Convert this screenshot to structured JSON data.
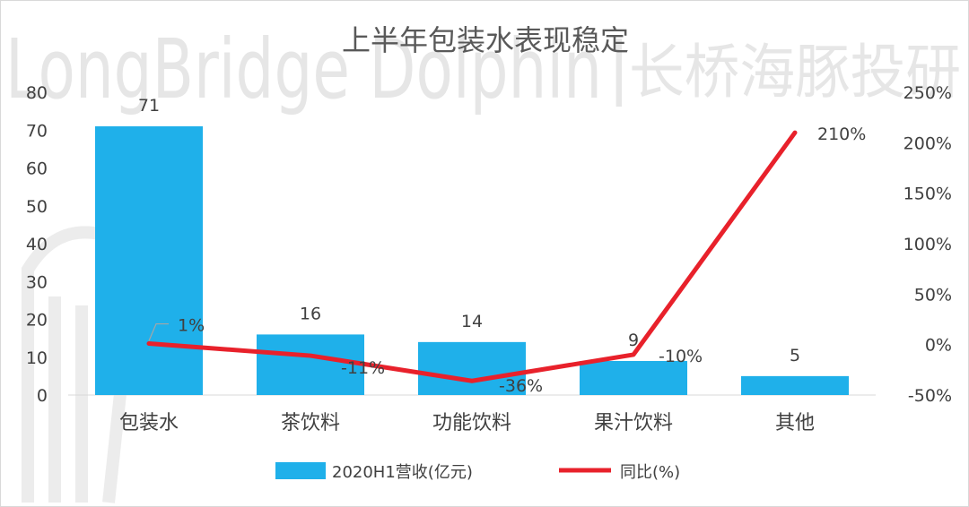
{
  "watermark": {
    "text_en": "LongBridge Dolphin",
    "separator": "|",
    "text_cn": "长桥海豚投研"
  },
  "colors": {
    "bar": "#1FB0EA",
    "line": "#E8212B",
    "text": "#404040",
    "title": "#595959",
    "axis": "#d9d9d9"
  },
  "chart_data": {
    "type": "bar",
    "title": "上半年包装水表现稳定",
    "categories": [
      "包装水",
      "茶饮料",
      "功能饮料",
      "果汁饮料",
      "其他"
    ],
    "series": [
      {
        "name": "2020H1营收(亿元)",
        "type": "bar",
        "axis": "left",
        "values": [
          71,
          16,
          14,
          9,
          5
        ],
        "labels": [
          "71",
          "16",
          "14",
          "9",
          "5"
        ]
      },
      {
        "name": "同比(%)",
        "type": "line",
        "axis": "right",
        "values": [
          1,
          -11,
          -36,
          -10,
          210
        ],
        "labels": [
          "1%",
          "-11%",
          "-36%",
          "-10%",
          "210%"
        ]
      }
    ],
    "y_left": {
      "min": 0,
      "max": 80,
      "step": 10,
      "ticks": [
        "0",
        "10",
        "20",
        "30",
        "40",
        "50",
        "60",
        "70",
        "80"
      ]
    },
    "y_right": {
      "min": -50,
      "max": 250,
      "step": 50,
      "ticks": [
        "-50%",
        "0%",
        "50%",
        "100%",
        "150%",
        "200%",
        "250%"
      ]
    },
    "legend_position": "bottom",
    "grid": false
  }
}
